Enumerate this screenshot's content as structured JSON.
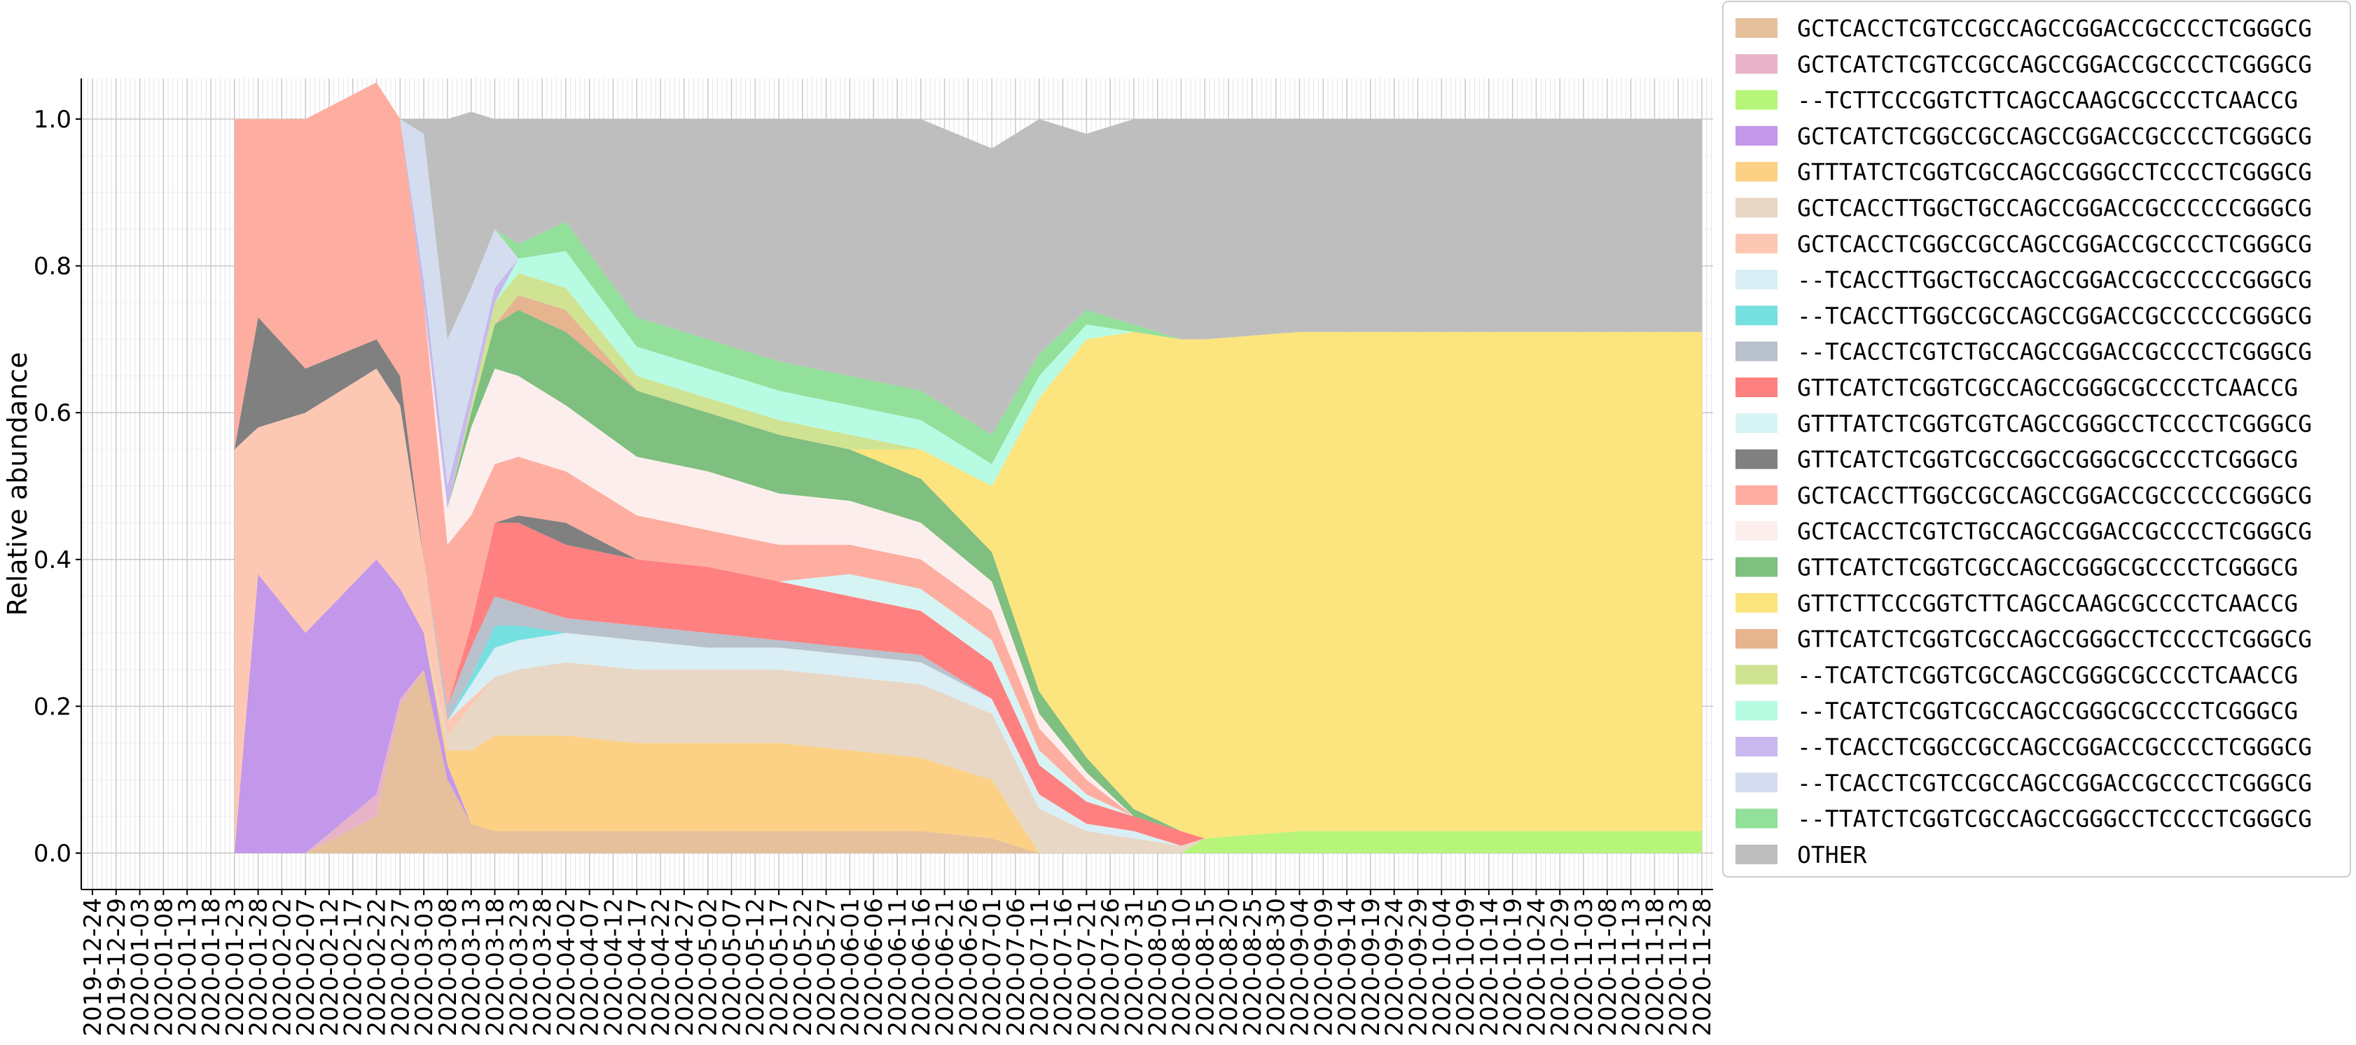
{
  "chart_data": {
    "type": "area",
    "stacked": true,
    "ylabel": "Relative abundance",
    "xlabel": "",
    "ylim": [
      0,
      1.05
    ],
    "yticks": [
      "0.0",
      "0.2",
      "0.4",
      "0.6",
      "0.8",
      "1.0"
    ],
    "grid": true,
    "legend_position": "right",
    "x_ticks": [
      "2019-12-24",
      "2019-12-29",
      "2020-01-03",
      "2020-01-08",
      "2020-01-13",
      "2020-01-18",
      "2020-01-23",
      "2020-01-28",
      "2020-02-02",
      "2020-02-07",
      "2020-02-12",
      "2020-02-17",
      "2020-02-22",
      "2020-02-27",
      "2020-03-03",
      "2020-03-08",
      "2020-03-13",
      "2020-03-18",
      "2020-03-23",
      "2020-03-28",
      "2020-04-02",
      "2020-04-07",
      "2020-04-12",
      "2020-04-17",
      "2020-04-22",
      "2020-04-27",
      "2020-05-02",
      "2020-05-07",
      "2020-05-12",
      "2020-05-17",
      "2020-05-22",
      "2020-05-27",
      "2020-06-01",
      "2020-06-06",
      "2020-06-11",
      "2020-06-16",
      "2020-06-21",
      "2020-06-26",
      "2020-07-01",
      "2020-07-06",
      "2020-07-11",
      "2020-07-16",
      "2020-07-21",
      "2020-07-26",
      "2020-07-31",
      "2020-08-05",
      "2020-08-10",
      "2020-08-15",
      "2020-08-20",
      "2020-08-25",
      "2020-08-30",
      "2020-09-04",
      "2020-09-09",
      "2020-09-14",
      "2020-09-19",
      "2020-09-24",
      "2020-09-29",
      "2020-10-04",
      "2020-10-09",
      "2020-10-14",
      "2020-10-19",
      "2020-10-24",
      "2020-10-29",
      "2020-11-03",
      "2020-11-08",
      "2020-11-13",
      "2020-11-18",
      "2020-11-23",
      "2020-11-28"
    ],
    "x": [
      "2020-01-23",
      "2020-01-28",
      "2020-02-07",
      "2020-02-22",
      "2020-02-27",
      "2020-03-03",
      "2020-03-08",
      "2020-03-13",
      "2020-03-18",
      "2020-03-23",
      "2020-04-02",
      "2020-04-17",
      "2020-05-02",
      "2020-05-17",
      "2020-06-01",
      "2020-06-16",
      "2020-07-01",
      "2020-07-11",
      "2020-07-21",
      "2020-07-31",
      "2020-08-10",
      "2020-08-15",
      "2020-09-04",
      "2020-10-04",
      "2020-11-03",
      "2020-11-28"
    ],
    "series": [
      {
        "name": "GCTCACCTCGTCCGCCAGCCGGACCGCCCCTCGGGCG",
        "color": "#e6bf9c",
        "values": [
          0,
          0,
          0,
          0.05,
          0.2,
          0.25,
          0.1,
          0.04,
          0.03,
          0.03,
          0.03,
          0.03,
          0.03,
          0.03,
          0.03,
          0.03,
          0.02,
          0,
          0,
          0,
          0,
          0,
          0,
          0,
          0,
          0
        ]
      },
      {
        "name": "GCTCATCTCGTCCGCCAGCCGGACCGCCCCTCGGGCG",
        "color": "#e8b3c8",
        "values": [
          0,
          0,
          0,
          0.03,
          0.01,
          0,
          0,
          0,
          0,
          0,
          0,
          0,
          0,
          0,
          0,
          0,
          0,
          0,
          0,
          0,
          0,
          0,
          0,
          0,
          0,
          0
        ]
      },
      {
        "name": "--TCTTCCCGGTCTTCAGCCAAGCGCCCCTCAACCG",
        "color": "#b7f57a",
        "values": [
          0,
          0,
          0,
          0,
          0,
          0,
          0,
          0,
          0,
          0,
          0,
          0,
          0,
          0,
          0,
          0,
          0,
          0,
          0,
          0,
          0,
          0.02,
          0.03,
          0.03,
          0.03,
          0.03
        ]
      },
      {
        "name": "GCTCATCTCGGCCGCCAGCCGGACCGCCCCTCGGGCG",
        "color": "#c397ea",
        "values": [
          0,
          0.38,
          0.3,
          0.32,
          0.15,
          0.05,
          0.02,
          0,
          0,
          0,
          0,
          0,
          0,
          0,
          0,
          0,
          0,
          0,
          0,
          0,
          0,
          0,
          0,
          0,
          0,
          0
        ]
      },
      {
        "name": "GTTTATCTCGGTCGCCAGCCGGGCCTCCCCTCGGGCG",
        "color": "#fcd185",
        "values": [
          0,
          0,
          0,
          0,
          0,
          0,
          0.02,
          0.1,
          0.13,
          0.13,
          0.13,
          0.12,
          0.12,
          0.12,
          0.11,
          0.1,
          0.08,
          0,
          0,
          0,
          0,
          0,
          0,
          0,
          0,
          0
        ]
      },
      {
        "name": "GCTCACCTTGGCTGCCAGCCGGACCGCCCCCCGGGCG",
        "color": "#e8d7c5",
        "values": [
          0,
          0,
          0,
          0,
          0,
          0,
          0.02,
          0.06,
          0.08,
          0.09,
          0.1,
          0.1,
          0.1,
          0.1,
          0.1,
          0.1,
          0.09,
          0.06,
          0.03,
          0.02,
          0.01,
          0,
          0,
          0,
          0,
          0
        ]
      },
      {
        "name": "GCTCACCTCGGCCGCCAGCCGGACCGCCCCTCGGGCG",
        "color": "#fdc8b3",
        "values": [
          0.55,
          0.2,
          0.3,
          0.26,
          0.25,
          0.1,
          0.02,
          0.01,
          0,
          0,
          0,
          0,
          0,
          0,
          0,
          0,
          0,
          0,
          0,
          0,
          0,
          0,
          0,
          0,
          0,
          0
        ]
      },
      {
        "name": "--TCACCTTGGCTGCCAGCCGGACCGCCCCCCGGGCG",
        "color": "#d9eff5",
        "values": [
          0,
          0,
          0,
          0,
          0,
          0,
          0,
          0.02,
          0.04,
          0.04,
          0.04,
          0.04,
          0.03,
          0.03,
          0.03,
          0.03,
          0.02,
          0.02,
          0.01,
          0.01,
          0,
          0,
          0,
          0,
          0,
          0
        ]
      },
      {
        "name": "--TCACCTTGGCCGCCAGCCGGACCGCCCCCCGGGCG",
        "color": "#76e0e0",
        "values": [
          0,
          0,
          0,
          0,
          0,
          0,
          0,
          0.01,
          0.03,
          0.02,
          0,
          0,
          0,
          0,
          0,
          0,
          0,
          0,
          0,
          0,
          0,
          0,
          0,
          0,
          0,
          0
        ]
      },
      {
        "name": "--TCACCTCGTCTGCCAGCCGGACCGCCCCTCGGGCG",
        "color": "#b8c1cc",
        "values": [
          0,
          0,
          0,
          0,
          0,
          0,
          0.02,
          0.04,
          0.04,
          0.03,
          0.02,
          0.02,
          0.02,
          0.01,
          0.01,
          0.01,
          0,
          0,
          0,
          0,
          0,
          0,
          0,
          0,
          0,
          0
        ]
      },
      {
        "name": "GTTCATCTCGGTCGCCAGCCGGGCGCCCCTCAACCG",
        "color": "#ff8080",
        "values": [
          0,
          0,
          0,
          0,
          0,
          0,
          0,
          0.03,
          0.1,
          0.11,
          0.1,
          0.09,
          0.09,
          0.08,
          0.07,
          0.06,
          0.05,
          0.04,
          0.03,
          0.02,
          0.02,
          0,
          0,
          0,
          0,
          0
        ]
      },
      {
        "name": "GTTTATCTCGGTCGTCAGCCGGGCCTCCCCTCGGGCG",
        "color": "#d7f4f4",
        "values": [
          0,
          0,
          0,
          0,
          0,
          0,
          0,
          0,
          0,
          0,
          0,
          0,
          0,
          0,
          0.03,
          0.03,
          0.03,
          0.02,
          0.01,
          0,
          0,
          0,
          0,
          0,
          0,
          0
        ]
      },
      {
        "name": "GTTCATCTCGGTCGCCGGCCGGGCGCCCCTCGGGCG",
        "color": "#808080",
        "values": [
          0,
          0.15,
          0.06,
          0.04,
          0.04,
          0,
          0,
          0,
          0,
          0.01,
          0.03,
          0,
          0,
          0,
          0,
          0,
          0,
          0,
          0,
          0,
          0,
          0,
          0,
          0,
          0,
          0
        ]
      },
      {
        "name": "GCTCACCTTGGCCGCCAGCCGGACCGCCCCCCGGGCG",
        "color": "#fdaea0",
        "values": [
          0.45,
          0.27,
          0.34,
          0.35,
          0.35,
          0.35,
          0.22,
          0.15,
          0.08,
          0.08,
          0.07,
          0.06,
          0.05,
          0.05,
          0.04,
          0.04,
          0.04,
          0.03,
          0.02,
          0,
          0,
          0,
          0,
          0,
          0,
          0
        ]
      },
      {
        "name": "GCTCACCTCGTCTGCCAGCCGGACCGCCCCTCGGGCG",
        "color": "#fdeeee",
        "values": [
          0,
          0,
          0,
          0,
          0,
          0,
          0.05,
          0.12,
          0.13,
          0.11,
          0.09,
          0.08,
          0.08,
          0.07,
          0.06,
          0.05,
          0.04,
          0.02,
          0.01,
          0,
          0,
          0,
          0,
          0,
          0,
          0
        ]
      },
      {
        "name": "GTTCATCTCGGTCGCCAGCCGGGCGCCCCTCGGGCG",
        "color": "#7fbf7f",
        "values": [
          0,
          0,
          0,
          0,
          0,
          0,
          0,
          0.02,
          0.06,
          0.09,
          0.1,
          0.09,
          0.08,
          0.08,
          0.07,
          0.06,
          0.04,
          0.03,
          0.02,
          0.01,
          0,
          0,
          0,
          0,
          0,
          0
        ]
      },
      {
        "name": "GTTCTTCCCGGTCTTCAGCCAAGCGCCCCTCAACCG",
        "color": "#fce47e",
        "values": [
          0,
          0,
          0,
          0,
          0,
          0,
          0,
          0,
          0,
          0,
          0,
          0,
          0,
          0,
          0,
          0.04,
          0.09,
          0.4,
          0.57,
          0.65,
          0.67,
          0.68,
          0.68,
          0.68,
          0.68,
          0.68
        ]
      },
      {
        "name": "GTTCATCTCGGTCGCCAGCCGGGCCTCCCCTCGGGCG",
        "color": "#e6b48f",
        "values": [
          0,
          0,
          0,
          0,
          0,
          0,
          0,
          0,
          0,
          0.02,
          0.03,
          0,
          0,
          0,
          0,
          0,
          0,
          0,
          0,
          0,
          0,
          0,
          0,
          0,
          0,
          0
        ]
      },
      {
        "name": "--TCATCTCGGTCGCCAGCCGGGCGCCCCTCAACCG",
        "color": "#cfe393",
        "values": [
          0,
          0,
          0,
          0,
          0,
          0,
          0,
          0.01,
          0.03,
          0.03,
          0.03,
          0.02,
          0.02,
          0.02,
          0.02,
          0,
          0,
          0,
          0,
          0,
          0,
          0,
          0,
          0,
          0,
          0
        ]
      },
      {
        "name": "--TCATCTCGGTCGCCAGCCGGGCGCCCCTCGGGCG",
        "color": "#b8fbe3",
        "values": [
          0,
          0,
          0,
          0,
          0,
          0,
          0,
          0,
          0,
          0.02,
          0.05,
          0.04,
          0.04,
          0.04,
          0.04,
          0.04,
          0.03,
          0.03,
          0.02,
          0,
          0,
          0,
          0,
          0,
          0,
          0
        ]
      },
      {
        "name": "--TCACCTCGGCCGCCAGCCGGACCGCCCCTCGGGCG",
        "color": "#c8b8ee",
        "values": [
          0,
          0,
          0,
          0,
          0,
          0.03,
          0.03,
          0.02,
          0.02,
          0,
          0,
          0,
          0,
          0,
          0,
          0,
          0,
          0,
          0,
          0,
          0,
          0,
          0,
          0,
          0,
          0
        ]
      },
      {
        "name": "--TCACCTCGTCCGCCAGCCGGACCGCCCCTCGGGCG",
        "color": "#d3ddef",
        "values": [
          0,
          0,
          0,
          0,
          0,
          0.2,
          0.2,
          0.14,
          0.08,
          0,
          0,
          0,
          0,
          0,
          0,
          0,
          0,
          0,
          0,
          0,
          0,
          0,
          0,
          0,
          0,
          0
        ]
      },
      {
        "name": "--TTATCTCGGTCGCCAGCCGGGCCTCCCCTCGGGCG",
        "color": "#93e09a",
        "values": [
          0,
          0,
          0,
          0,
          0,
          0,
          0,
          0,
          0,
          0.02,
          0.04,
          0.04,
          0.04,
          0.04,
          0.04,
          0.04,
          0.04,
          0.03,
          0.02,
          0.01,
          0,
          0,
          0,
          0,
          0,
          0
        ]
      },
      {
        "name": "OTHER",
        "color": "#bebebe",
        "values": [
          0,
          0,
          0,
          0,
          0,
          0.02,
          0.3,
          0.24,
          0.15,
          0.17,
          0.14,
          0.27,
          0.3,
          0.33,
          0.35,
          0.37,
          0.39,
          0.32,
          0.24,
          0.28,
          0.3,
          0.3,
          0.29,
          0.29,
          0.29,
          0.29
        ]
      }
    ]
  }
}
